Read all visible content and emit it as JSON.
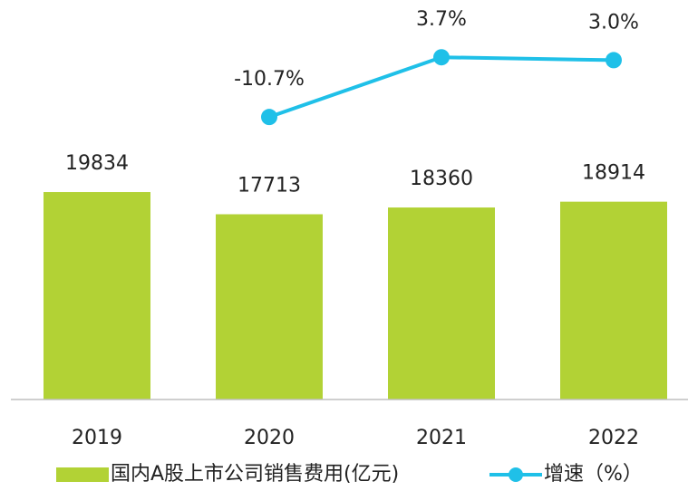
{
  "chart_data": {
    "type": "bar-line",
    "categories": [
      "2019",
      "2020",
      "2021",
      "2022"
    ],
    "series": [
      {
        "name": "国内A股上市公司销售费用(亿元)",
        "type": "bar",
        "color": "#b2d235",
        "values": [
          19834,
          17713,
          18360,
          18914
        ]
      },
      {
        "name": "增速（%）",
        "type": "line",
        "axis": "y2",
        "color": "#1fc0e8",
        "values": [
          null,
          -10.7,
          3.7,
          3.0
        ],
        "value_labels": [
          null,
          "-10.7%",
          "3.7%",
          "3.0%"
        ]
      }
    ],
    "ylim": [
      0,
      38200
    ],
    "y2lim": [
      -78.8,
      17.5
    ],
    "legend": "bottom"
  }
}
